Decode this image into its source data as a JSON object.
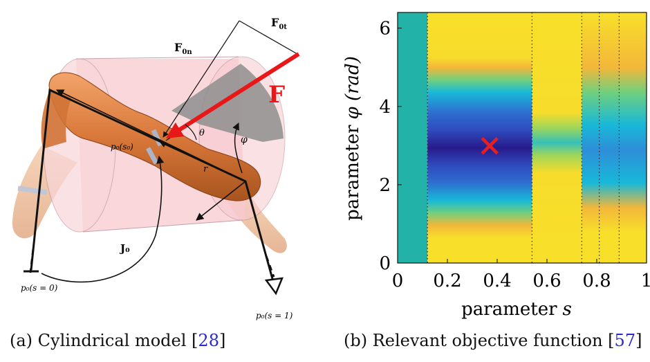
{
  "figure_a": {
    "labels": {
      "F0t": "F",
      "F0t_sub": "0t",
      "F0n": "F",
      "F0n_sub": "0n",
      "F": "F",
      "theta": "θ",
      "phi": "φ",
      "p0s0": "p₀(s₀)",
      "r": "r",
      "J0": "J₀",
      "p0_s0": "p₀(s = 0)",
      "p0_s1": "p₀(s = 1)"
    },
    "colors": {
      "cylinder": "#f7c9cf",
      "shadow": "#8e8e8e",
      "body": "#d9783a",
      "force": "#e81818"
    }
  },
  "figure_b": {
    "axes": {
      "xlabel_prefix": "parameter",
      "xlabel_var": "s",
      "ylabel_prefix": "parameter",
      "ylabel_var": "φ (rad)",
      "xticks": [
        "0",
        "0.2",
        "0.4",
        "0.6",
        "0.8",
        "1"
      ],
      "yticks": [
        "0",
        "2",
        "4",
        "6"
      ]
    },
    "marker": {
      "symbol": "×",
      "color": "#e51e1e"
    },
    "colors": {
      "teal": "#22b2a8",
      "yellow": "#f8e02a",
      "orange": "#f3b73a",
      "cyan": "#18b8d8",
      "blue": "#2e6ed0",
      "navy": "#281a8c"
    }
  },
  "chart_data": {
    "type": "heatmap",
    "title": "",
    "xlabel": "parameter s",
    "ylabel": "parameter φ (rad)",
    "xlim": [
      0,
      1
    ],
    "ylim": [
      0,
      6.4
    ],
    "xticks": [
      0,
      0.2,
      0.4,
      0.6,
      0.8,
      1
    ],
    "yticks": [
      0,
      2,
      4,
      6
    ],
    "dotted_vertical_lines_s": [
      0.12,
      0.54,
      0.74,
      0.81,
      0.89
    ],
    "minimum_marker": {
      "s": 0.37,
      "phi": 3.0
    },
    "colormap": "parula",
    "grid": false
  },
  "captions": {
    "a": {
      "text": "(a) Cylindrical model ",
      "ref_open": "[",
      "ref": "28",
      "ref_close": "]"
    },
    "b": {
      "text": "(b) Relevant objective function ",
      "ref_open": "[",
      "ref": "57",
      "ref_close": "]"
    }
  }
}
